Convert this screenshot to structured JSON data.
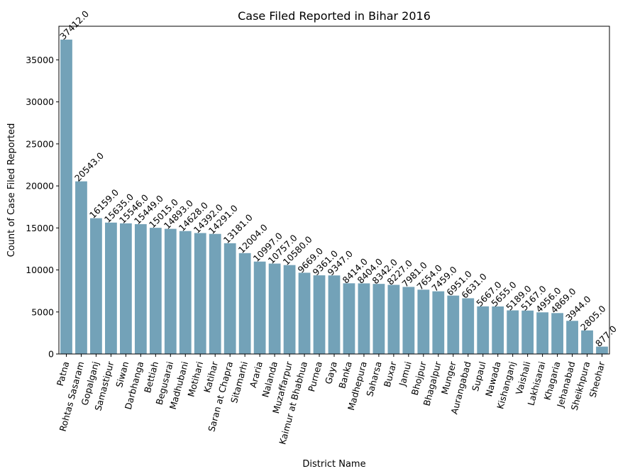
{
  "chart_data": {
    "type": "bar",
    "title": "Case Filed Reported in Bihar 2016",
    "xlabel": "District Name",
    "ylabel": "Count of Case Filed Reported",
    "ylim": [
      0,
      39000
    ],
    "yticks": [
      0,
      5000,
      10000,
      15000,
      20000,
      25000,
      30000,
      35000
    ],
    "grid": false,
    "bar_color": "#73a2b8",
    "categories": [
      "Patna",
      "Rohtas Sasaram",
      "Gopalganj",
      "Samastipur",
      "Siwan",
      "Darbhanga",
      "Bettiah",
      "Begusarai",
      "Madhubani",
      "Motihari",
      "Katihar",
      "Saran at Chapra",
      "Sitamarhi",
      "Araria",
      "Nalanda",
      "Muzaffarpur",
      "Kaimur at Bhabhua",
      "Purnea",
      "Gaya",
      "Banka",
      "Madhepura",
      "Saharsa",
      "Buxar",
      "Jamui",
      "Bhojpur",
      "Bhagalpur",
      "Munger",
      "Aurangabad",
      "Supaul",
      "Nawada",
      "Kishanganj",
      "Vaishali",
      "Lakhisarai",
      "Khagaria",
      "Jehanabad",
      "Sheikhpura",
      "Sheohar"
    ],
    "values": [
      37412,
      20543,
      16159,
      15635,
      15546,
      15449,
      15015,
      14893,
      14628,
      14392,
      14291,
      13181,
      12004,
      10997,
      10757,
      10580,
      9669,
      9361,
      9347,
      8414,
      8404,
      8342,
      8227,
      7981,
      7654,
      7459,
      6951,
      6631,
      5667,
      5655,
      5189,
      5167,
      4956,
      4869,
      3944,
      2805,
      877
    ],
    "data_labels": [
      "37412.0",
      "20543.0",
      "16159.0",
      "15635.0",
      "15546.0",
      "15449.0",
      "15015.0",
      "14893.0",
      "14628.0",
      "14392.0",
      "14291.0",
      "13181.0",
      "12004.0",
      "10997.0",
      "10757.0",
      "10580.0",
      "9669.0",
      "9361.0",
      "9347.0",
      "8414.0",
      "8404.0",
      "8342.0",
      "8227.0",
      "7981.0",
      "7654.0",
      "7459.0",
      "6951.0",
      "6631.0",
      "5667.0",
      "5655.0",
      "5189.0",
      "5167.0",
      "4956.0",
      "4869.0",
      "3944.0",
      "2805.0",
      "877.0"
    ]
  }
}
